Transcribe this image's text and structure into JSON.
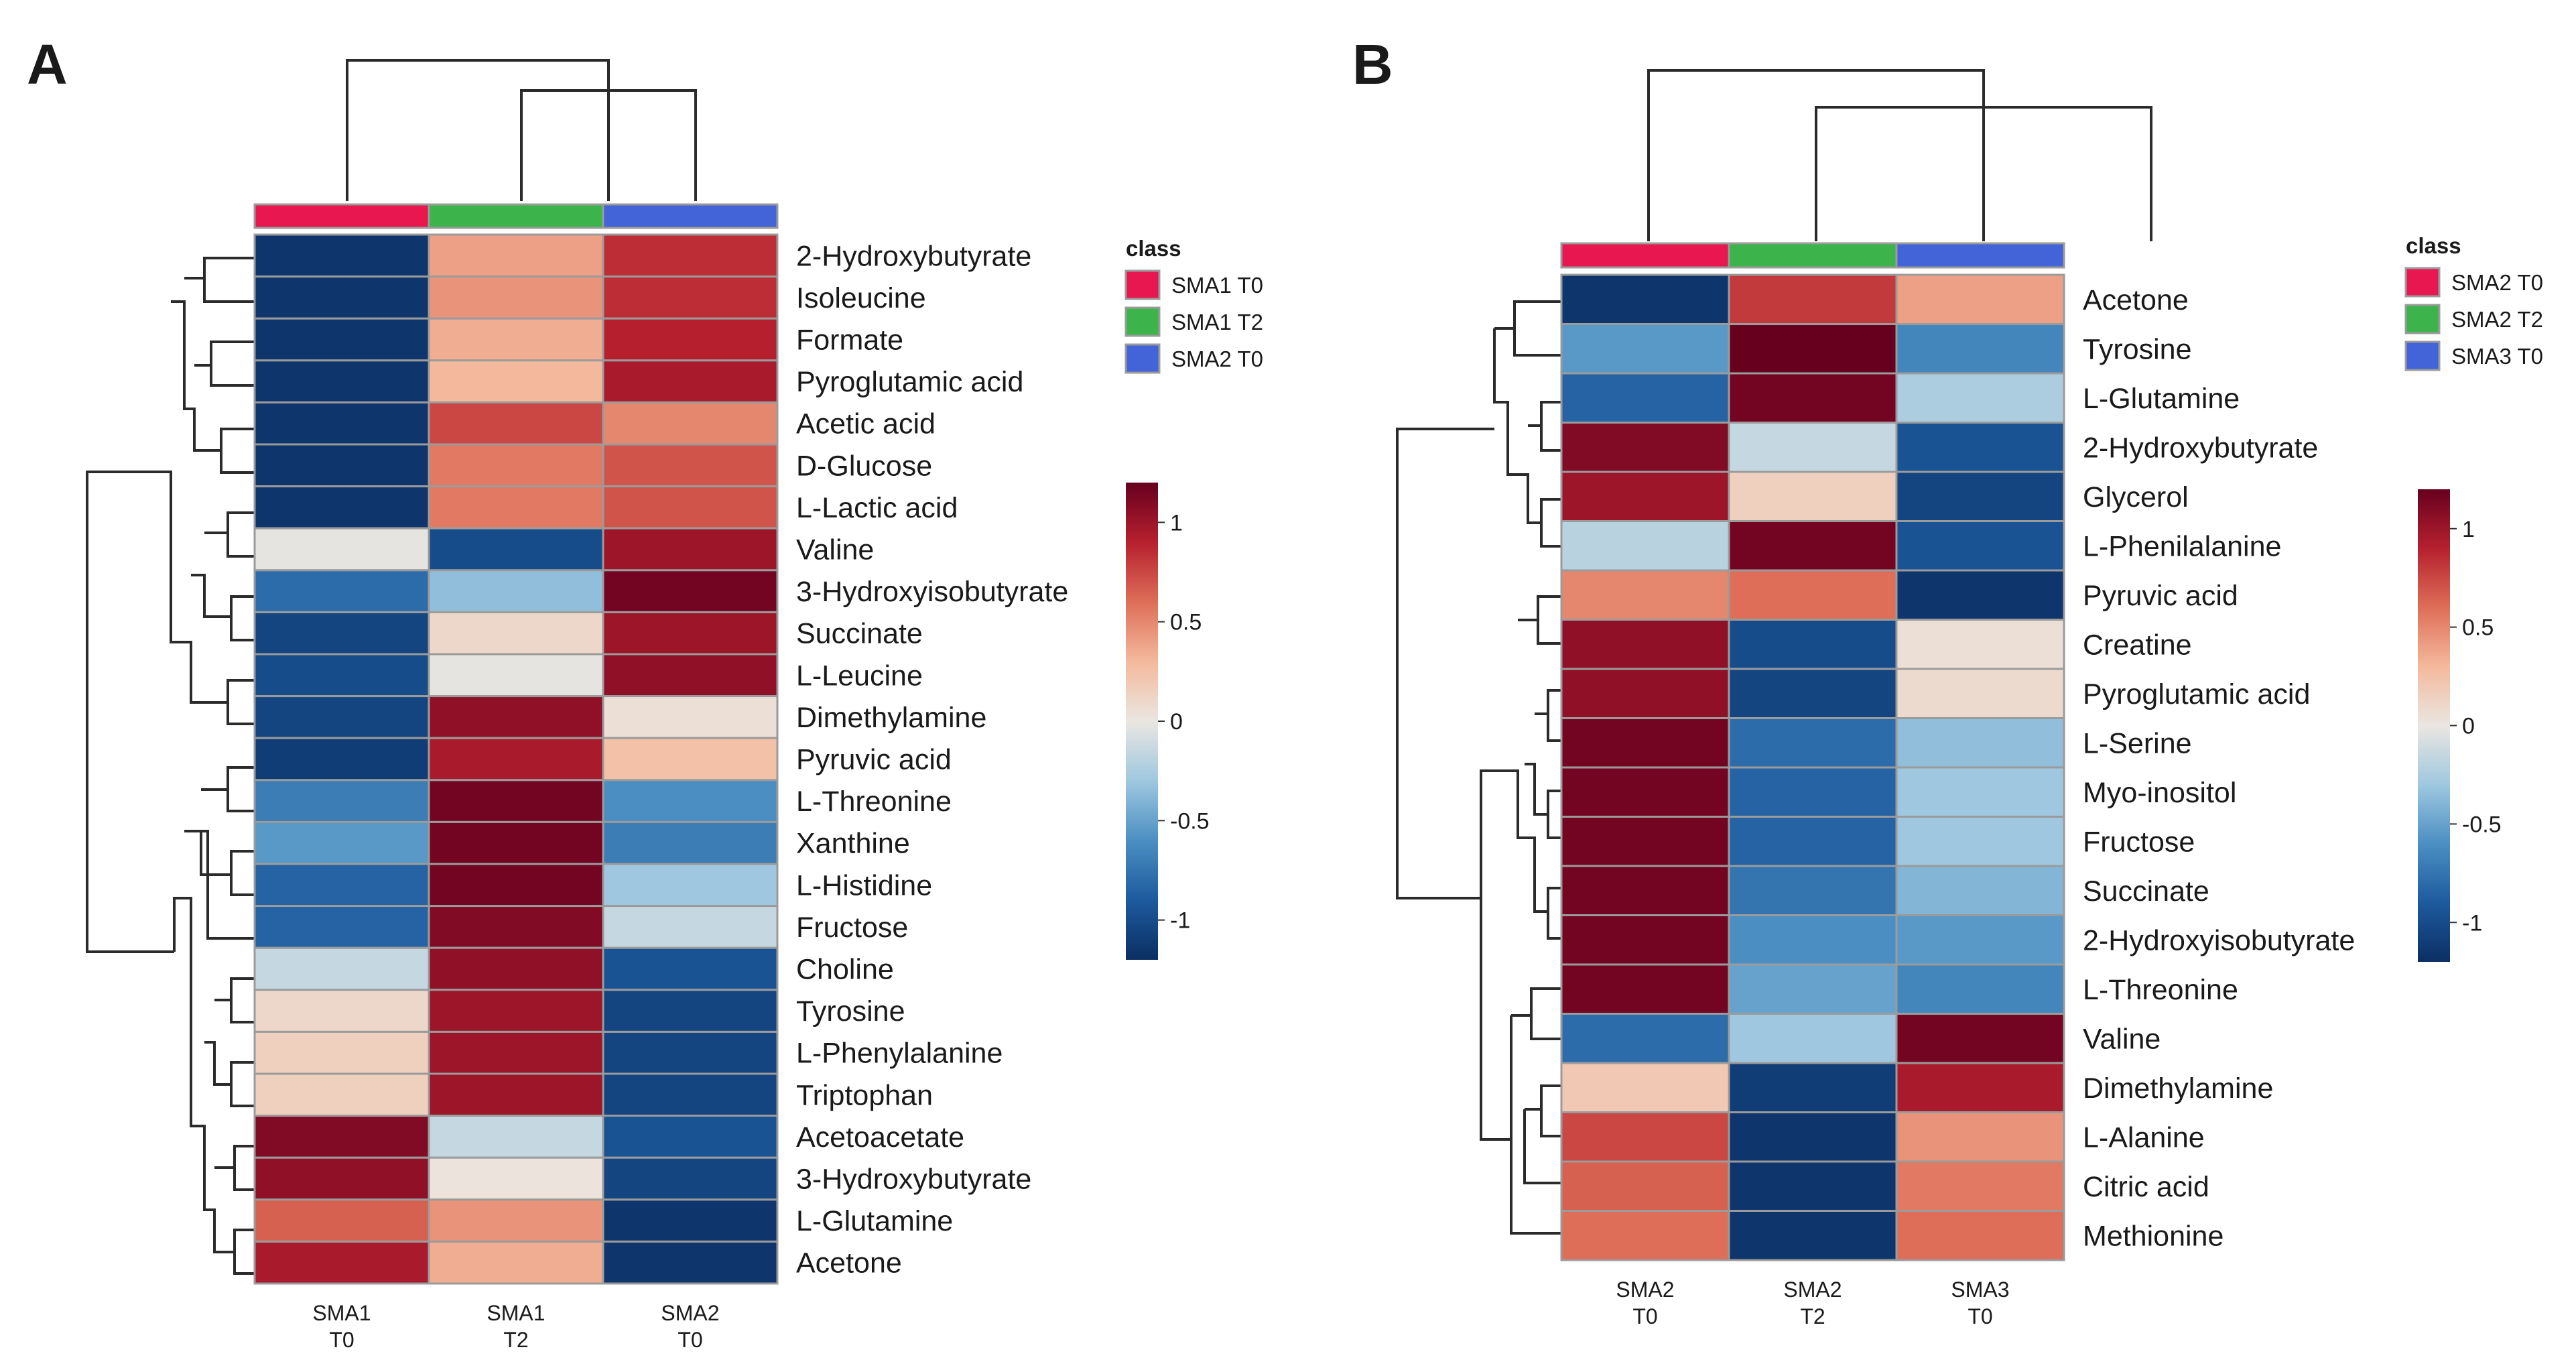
{
  "chart_data": [
    {
      "type": "heatmap",
      "panel": "A",
      "columns": [
        {
          "line1": "SMA1",
          "line2": "T0",
          "class": "SMA1 T0"
        },
        {
          "line1": "SMA1",
          "line2": "T2",
          "class": "SMA1 T2"
        },
        {
          "line1": "SMA2",
          "line2": "T0",
          "class": "SMA2 T0"
        }
      ],
      "rows": [
        "2-Hydroxybutyrate",
        "Isoleucine",
        "Formate",
        "Pyroglutamic acid",
        "Acetic acid",
        "D-Glucose",
        "L-Lactic acid",
        "Valine",
        "3-Hydroxyisobutyrate",
        "Succinate",
        "L-Leucine",
        "Dimethylamine",
        "Pyruvic acid",
        "L-Threonine",
        "Xanthine",
        "L-Histidine",
        "Fructose",
        "Choline",
        "Tyrosine",
        "L-Phenylalanine",
        "Triptophan",
        "Acetoacetate",
        "3-Hydroxybutyrate",
        "L-Glutamine",
        "Acetone"
      ],
      "values": [
        [
          -1.15,
          0.4,
          0.85
        ],
        [
          -1.15,
          0.45,
          0.85
        ],
        [
          -1.15,
          0.35,
          0.9
        ],
        [
          -1.15,
          0.3,
          0.95
        ],
        [
          -1.15,
          0.75,
          0.5
        ],
        [
          -1.15,
          0.55,
          0.7
        ],
        [
          -1.15,
          0.55,
          0.7
        ],
        [
          -0.02,
          -1.0,
          1.0
        ],
        [
          -0.8,
          -0.35,
          1.15
        ],
        [
          -1.05,
          0.1,
          1.0
        ],
        [
          -1.0,
          -0.02,
          1.05
        ],
        [
          -1.05,
          1.05,
          0.05
        ],
        [
          -1.1,
          0.95,
          0.25
        ],
        [
          -0.7,
          1.15,
          -0.6
        ],
        [
          -0.55,
          1.15,
          -0.7
        ],
        [
          -0.85,
          1.15,
          -0.3
        ],
        [
          -0.85,
          1.1,
          -0.15
        ],
        [
          -0.15,
          1.05,
          -0.95
        ],
        [
          0.1,
          1.0,
          -1.05
        ],
        [
          0.15,
          1.0,
          -1.05
        ],
        [
          0.15,
          1.0,
          -1.05
        ],
        [
          1.1,
          -0.15,
          -0.95
        ],
        [
          1.05,
          0.02,
          -1.05
        ],
        [
          0.65,
          0.45,
          -1.15
        ],
        [
          0.95,
          0.35,
          -1.15
        ]
      ],
      "legend": {
        "title": "class",
        "entries": [
          {
            "label": "SMA1 T0",
            "color": "#e8174f"
          },
          {
            "label": "SMA1 T2",
            "color": "#3cb44b"
          },
          {
            "label": "SMA2 T0",
            "color": "#4363d8"
          }
        ]
      },
      "color_scale": {
        "ticks": [
          "1",
          "0.5",
          "0",
          "-0.5",
          "-1"
        ],
        "range": [
          -1.2,
          1.2
        ]
      }
    },
    {
      "type": "heatmap",
      "panel": "B",
      "columns": [
        {
          "line1": "SMA2",
          "line2": "T0",
          "class": "SMA2 T0"
        },
        {
          "line1": "SMA2",
          "line2": "T2",
          "class": "SMA2 T2"
        },
        {
          "line1": "SMA3",
          "line2": "T0",
          "class": "SMA3 T0"
        }
      ],
      "rows": [
        "Acetone",
        "Tyrosine",
        "L-Glutamine",
        "2-Hydroxybutyrate",
        "Glycerol",
        "L-Phenilalanine",
        "Pyruvic acid",
        "Creatine",
        "Pyroglutamic acid",
        "L-Serine",
        "Myo-inositol",
        "Fructose",
        "Succinate",
        "2-Hydroxyisobutyrate",
        "L-Threonine",
        "Valine",
        "Dimethylamine",
        "L-Alanine",
        "Citric acid",
        "Methionine"
      ],
      "values": [
        [
          -1.15,
          0.8,
          0.4
        ],
        [
          -0.55,
          1.2,
          -0.65
        ],
        [
          -0.85,
          1.15,
          -0.25
        ],
        [
          1.1,
          -0.15,
          -0.95
        ],
        [
          1.0,
          0.15,
          -1.05
        ],
        [
          -0.2,
          1.15,
          -0.95
        ],
        [
          0.5,
          0.6,
          -1.15
        ],
        [
          1.05,
          -1.0,
          0.05
        ],
        [
          1.05,
          -1.05,
          0.08
        ],
        [
          1.15,
          -0.8,
          -0.35
        ],
        [
          1.15,
          -0.85,
          -0.3
        ],
        [
          1.15,
          -0.85,
          -0.3
        ],
        [
          1.15,
          -0.75,
          -0.4
        ],
        [
          1.15,
          -0.6,
          -0.55
        ],
        [
          1.15,
          -0.5,
          -0.65
        ],
        [
          -0.8,
          -0.3,
          1.15
        ],
        [
          0.2,
          -1.1,
          0.95
        ],
        [
          0.75,
          -1.15,
          0.45
        ],
        [
          0.65,
          -1.15,
          0.55
        ],
        [
          0.6,
          -1.15,
          0.6
        ]
      ],
      "legend": {
        "title": "class",
        "entries": [
          {
            "label": "SMA2 T0",
            "color": "#e8174f"
          },
          {
            "label": "SMA2 T2",
            "color": "#3cb44b"
          },
          {
            "label": "SMA3 T0",
            "color": "#4363d8"
          }
        ]
      },
      "color_scale": {
        "ticks": [
          "1",
          "0.5",
          "0",
          "-0.5",
          "-1"
        ],
        "range": [
          -1.2,
          1.2
        ]
      }
    }
  ]
}
